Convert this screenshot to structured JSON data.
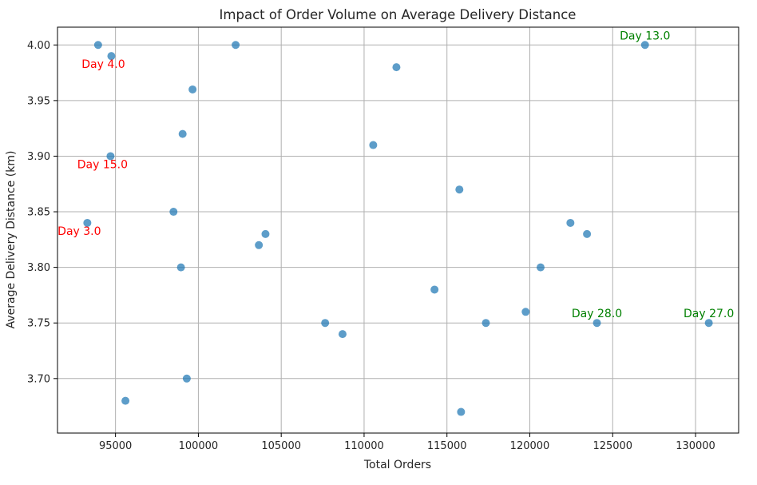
{
  "chart_data": {
    "type": "scatter",
    "title": "Impact of Order Volume on Average Delivery Distance",
    "xlabel": "Total Orders",
    "ylabel": "Average Delivery Distance (km)",
    "xlim": [
      91500,
      132600
    ],
    "ylim": [
      3.651,
      4.016
    ],
    "xticks": [
      95000,
      100000,
      105000,
      110000,
      115000,
      120000,
      125000,
      130000
    ],
    "yticks": [
      3.7,
      3.75,
      3.8,
      3.85,
      3.9,
      3.95,
      4.0
    ],
    "xtick_labels": [
      "95000",
      "100000",
      "105000",
      "110000",
      "115000",
      "120000",
      "125000",
      "130000"
    ],
    "ytick_labels": [
      "3.70",
      "3.75",
      "3.80",
      "3.85",
      "3.90",
      "3.95",
      "4.00"
    ],
    "grid": true,
    "point_color": "#1f77b4",
    "points": [
      {
        "x": 93950,
        "y": 4.0
      },
      {
        "x": 94750,
        "y": 3.99
      },
      {
        "x": 102250,
        "y": 4.0
      },
      {
        "x": 111950,
        "y": 3.98
      },
      {
        "x": 126950,
        "y": 4.0
      },
      {
        "x": 99650,
        "y": 3.96
      },
      {
        "x": 99050,
        "y": 3.92
      },
      {
        "x": 110550,
        "y": 3.91
      },
      {
        "x": 94700,
        "y": 3.9
      },
      {
        "x": 115750,
        "y": 3.87
      },
      {
        "x": 98500,
        "y": 3.85
      },
      {
        "x": 93300,
        "y": 3.84
      },
      {
        "x": 122450,
        "y": 3.84
      },
      {
        "x": 104050,
        "y": 3.83
      },
      {
        "x": 123450,
        "y": 3.83
      },
      {
        "x": 103650,
        "y": 3.82
      },
      {
        "x": 98950,
        "y": 3.8
      },
      {
        "x": 120650,
        "y": 3.8
      },
      {
        "x": 114250,
        "y": 3.78
      },
      {
        "x": 119750,
        "y": 3.76
      },
      {
        "x": 107650,
        "y": 3.75
      },
      {
        "x": 117350,
        "y": 3.75
      },
      {
        "x": 124050,
        "y": 3.75
      },
      {
        "x": 130800,
        "y": 3.75
      },
      {
        "x": 108700,
        "y": 3.74
      },
      {
        "x": 99300,
        "y": 3.7
      },
      {
        "x": 95600,
        "y": 3.68
      },
      {
        "x": 115850,
        "y": 3.67
      }
    ],
    "annotations": [
      {
        "text": "Day 4.0",
        "x": 94750,
        "y": 3.99,
        "color": "#ff0000"
      },
      {
        "text": "Day 15.0",
        "x": 94700,
        "y": 3.9,
        "color": "#ff0000"
      },
      {
        "text": "Day 3.0",
        "x": 93300,
        "y": 3.84,
        "color": "#ff0000"
      },
      {
        "text": "Day 13.0",
        "x": 126950,
        "y": 4.0,
        "color": "#008000"
      },
      {
        "text": "Day 28.0",
        "x": 124050,
        "y": 3.75,
        "color": "#008000"
      },
      {
        "text": "Day 27.0",
        "x": 130800,
        "y": 3.75,
        "color": "#008000"
      }
    ]
  }
}
